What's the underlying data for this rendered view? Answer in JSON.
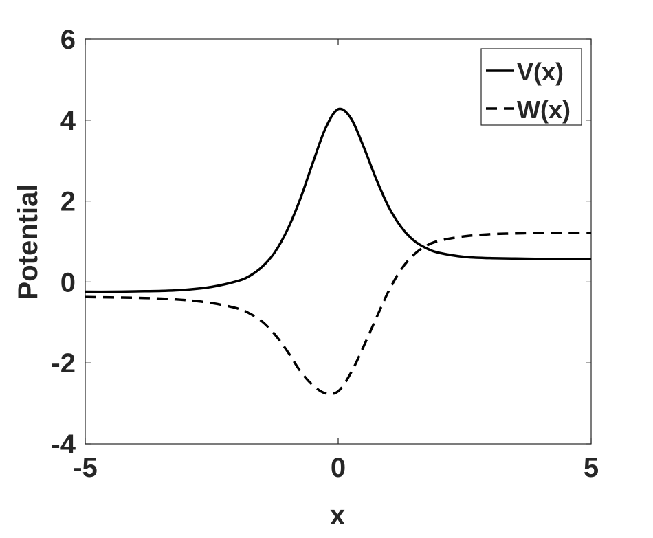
{
  "chart_data": {
    "type": "line",
    "title": "",
    "xlabel": "x",
    "ylabel": "Potential",
    "xlim": [
      -5,
      5
    ],
    "ylim": [
      -4,
      6
    ],
    "xticks": [
      -5,
      0,
      5
    ],
    "yticks": [
      -4,
      -2,
      0,
      2,
      4,
      6
    ],
    "grid": false,
    "legend_position": "top-right",
    "x": [
      -5,
      -4.5,
      -4,
      -3.5,
      -3,
      -2.5,
      -2,
      -1.75,
      -1.5,
      -1.25,
      -1,
      -0.75,
      -0.5,
      -0.25,
      0,
      0.25,
      0.5,
      0.75,
      1,
      1.25,
      1.5,
      1.75,
      2,
      2.5,
      3,
      3.5,
      4,
      4.5,
      5
    ],
    "series": [
      {
        "name": "V(x)",
        "style": "solid",
        "color": "#000000",
        "values": [
          -0.24,
          -0.24,
          -0.23,
          -0.22,
          -0.19,
          -0.12,
          0.02,
          0.15,
          0.38,
          0.74,
          1.3,
          2.05,
          2.95,
          3.8,
          4.27,
          4.05,
          3.35,
          2.55,
          1.85,
          1.35,
          1.02,
          0.83,
          0.72,
          0.62,
          0.59,
          0.58,
          0.57,
          0.57,
          0.57
        ]
      },
      {
        "name": "W(x)",
        "style": "dashed",
        "color": "#000000",
        "values": [
          -0.37,
          -0.38,
          -0.39,
          -0.41,
          -0.45,
          -0.52,
          -0.65,
          -0.78,
          -0.98,
          -1.3,
          -1.72,
          -2.2,
          -2.55,
          -2.75,
          -2.7,
          -2.25,
          -1.6,
          -0.9,
          -0.22,
          0.32,
          0.68,
          0.9,
          1.02,
          1.13,
          1.18,
          1.2,
          1.21,
          1.21,
          1.21
        ]
      }
    ]
  }
}
